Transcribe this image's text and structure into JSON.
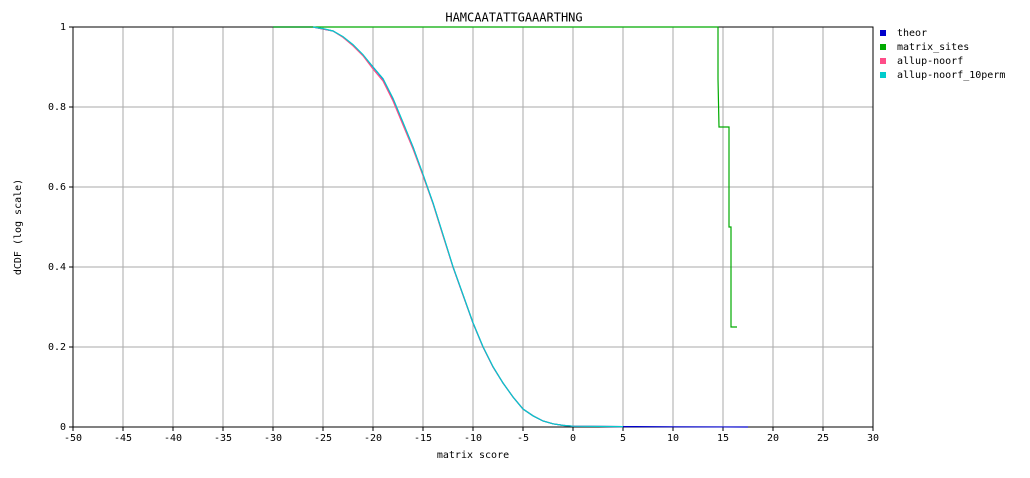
{
  "chart_data": {
    "type": "line",
    "title": "HAMCAATATTGAAARTHNG",
    "xlabel": "matrix score",
    "ylabel": "dCDF (log scale)",
    "xlim": [
      -50,
      30
    ],
    "xticks": [
      -50,
      -45,
      -40,
      -35,
      -30,
      -25,
      -20,
      -15,
      -10,
      -5,
      0,
      5,
      10,
      15,
      20,
      25,
      30
    ],
    "ylim": [
      0,
      1
    ],
    "yticks": [
      0,
      0.2,
      0.4,
      0.6,
      0.8,
      1
    ],
    "grid": true,
    "legend": "outside-right",
    "series": [
      {
        "name": "theor",
        "color": "#0000cc",
        "x": [
          -30,
          -26,
          -25,
          -24,
          -23,
          -22,
          -21,
          -20,
          -19,
          -18,
          -17,
          -16,
          -15,
          -14,
          -13,
          -12,
          -11,
          -10,
          -9,
          -8,
          -7,
          -6,
          -5,
          -4,
          -3,
          -2,
          -1,
          0,
          5,
          10,
          15,
          17.5
        ],
        "values": [
          1,
          1,
          0.995,
          0.99,
          0.975,
          0.955,
          0.93,
          0.9,
          0.87,
          0.82,
          0.76,
          0.7,
          0.63,
          0.56,
          0.48,
          0.4,
          0.33,
          0.26,
          0.2,
          0.15,
          0.11,
          0.075,
          0.045,
          0.028,
          0.015,
          0.008,
          0.004,
          0.002,
          0.001,
          0.0005,
          0.0002,
          0
        ]
      },
      {
        "name": "matrix_sites",
        "color": "#00aa00",
        "x": [
          -30,
          14.5,
          14.5,
          14.6,
          15.6,
          15.6,
          15.8,
          15.8,
          16.4
        ],
        "values": [
          1,
          1,
          0.87,
          0.75,
          0.75,
          0.5,
          0.5,
          0.25,
          0.25
        ]
      },
      {
        "name": "allup-noorf",
        "color": "#ff4d88",
        "x": [
          -26,
          -25,
          -24,
          -23,
          -22,
          -21,
          -20,
          -19,
          -18,
          -17,
          -16,
          -15,
          -14,
          -13,
          -12,
          -11,
          -10,
          -9,
          -8,
          -7,
          -6,
          -5,
          -4,
          -3,
          -2,
          -1,
          0,
          5
        ],
        "values": [
          1,
          0.995,
          0.99,
          0.974,
          0.953,
          0.928,
          0.895,
          0.865,
          0.815,
          0.755,
          0.695,
          0.628,
          0.558,
          0.478,
          0.4,
          0.33,
          0.26,
          0.2,
          0.15,
          0.11,
          0.075,
          0.045,
          0.028,
          0.015,
          0.008,
          0.004,
          0.002,
          0.001
        ]
      },
      {
        "name": "allup-noorf_10perm",
        "color": "#00cccc",
        "x": [
          -26,
          -25,
          -24,
          -23,
          -22,
          -21,
          -20,
          -19,
          -18,
          -17,
          -16,
          -15,
          -14,
          -13,
          -12,
          -11,
          -10,
          -9,
          -8,
          -7,
          -6,
          -5,
          -4,
          -3,
          -2,
          -1,
          0,
          5
        ],
        "values": [
          1,
          0.996,
          0.99,
          0.976,
          0.956,
          0.931,
          0.9,
          0.871,
          0.822,
          0.762,
          0.7,
          0.632,
          0.56,
          0.481,
          0.401,
          0.331,
          0.261,
          0.201,
          0.151,
          0.11,
          0.075,
          0.045,
          0.028,
          0.015,
          0.008,
          0.004,
          0.002,
          0.001
        ]
      }
    ]
  }
}
